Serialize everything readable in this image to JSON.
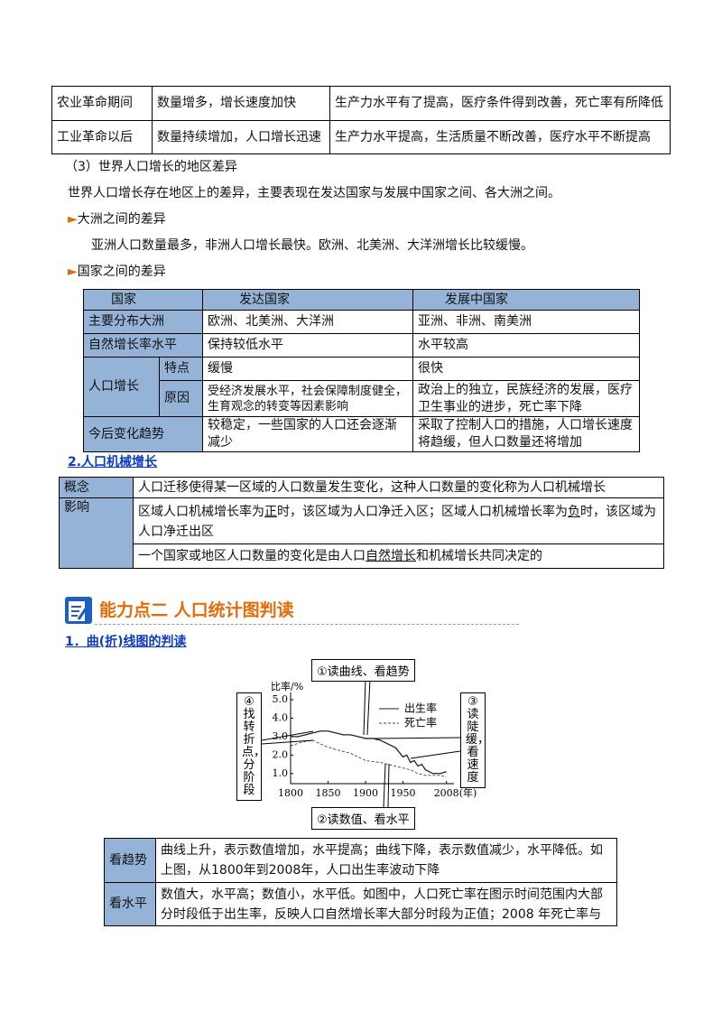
{
  "table1": {
    "rows": [
      [
        "农业革命期间",
        "数量增多，增长速度加快",
        "生产力水平有了提高，医疗条件得到改善，死亡率有所降低"
      ],
      [
        "工业革命以后",
        "数量持续增加，人口增长迅速",
        "生产力水平提高，生活质量不断改善，医疗水平不断提高"
      ]
    ]
  },
  "section3": {
    "heading": "（3）世界人口增长的地区差异",
    "intro": "世界人口增长存在地区上的差异，主要表现在发达国家与发展中国家之间、各大洲之间。",
    "sub1": {
      "title": "大洲之间的差异",
      "text": "亚洲人口数量最多，非洲人口增长最快。欧洲、北美洲、大洋洲增长比较缓慢。"
    },
    "sub2": {
      "title": "国家之间的差异"
    }
  },
  "table2": {
    "header": [
      "国家",
      "发达国家",
      "发展中国家"
    ],
    "rows": [
      [
        "主要分布大洲",
        "欧洲、北美洲、大洋洲",
        "亚洲、非洲、南美洲"
      ],
      [
        "自然增长率水平",
        "保持较低水平",
        "水平较高"
      ]
    ],
    "growth": {
      "label": "人口增长",
      "rows": [
        [
          "特点",
          "缓慢",
          "很快"
        ],
        [
          "原因",
          "受经济发展水平，社会保障制度健全，生育观念的转变等因素影响",
          "政治上的独立，民族经济的发展，医疗卫生事业的进步，死亡率下降"
        ]
      ]
    },
    "trend": [
      "今后变化趋势",
      "较稳定，一些国家的人口还会逐渐减少",
      "采取了控制人口的措施，人口增长速度将趋缓，但人口数量还将增加"
    ]
  },
  "table3": {
    "title": "2.人口机械增长",
    "concept": [
      "概念",
      "人口迁移使得某一区域的人口数量发生变化，这种人口数量的变化称为人口机械增长"
    ],
    "impact": {
      "label": "影响",
      "line1": [
        "区域人口机械增长率为",
        "正",
        "时，该区域为人口净迁入区；区域人口机械增长率为",
        "负",
        "时，该区域为人口净迁出区"
      ],
      "line2": [
        "一个国家或地区人口数量的变化是由人口",
        "自然增长",
        "和机械增长共同决定的"
      ]
    }
  },
  "section": {
    "title": "能力点二 人口统计图判读",
    "subtitle": "1．曲(折)线图的判读"
  },
  "chart_data": {
    "type": "line",
    "ylabel": "比率/%",
    "xlabel": "(年)",
    "xlim": [
      1800,
      2018
    ],
    "ylim": [
      0.5,
      5.0
    ],
    "xticks": [
      1800,
      1850,
      1900,
      1950,
      2008
    ],
    "yticks": [
      {
        "value": 1,
        "label": "1.0"
      },
      {
        "value": 2,
        "label": "2.0"
      },
      {
        "value": 3,
        "label": "3.0"
      },
      {
        "value": 4,
        "label": "4.0"
      },
      {
        "value": 5,
        "label": "5.0"
      }
    ],
    "series": [
      {
        "name": "出生率",
        "color": "#222222",
        "style": "solid",
        "x": [
          1800,
          1810,
          1820,
          1830,
          1840,
          1850,
          1860,
          1870,
          1880,
          1890,
          1900,
          1910,
          1920,
          1930,
          1940,
          1950,
          1955,
          1960,
          1965,
          1970,
          1975,
          1980,
          1990,
          2000,
          2008
        ],
        "values": [
          3.0,
          3.0,
          3.1,
          3.2,
          3.3,
          3.3,
          3.2,
          3.1,
          3.1,
          3.0,
          2.9,
          2.9,
          2.8,
          2.6,
          2.4,
          1.9,
          2.0,
          1.6,
          1.7,
          1.4,
          1.5,
          1.2,
          1.0,
          1.0,
          1.1
        ]
      },
      {
        "name": "死亡率",
        "color": "#444444",
        "style": "dashed",
        "x": [
          1800,
          1815,
          1830,
          1845,
          1860,
          1880,
          1900,
          1920,
          1940,
          1950,
          1960,
          1970,
          1980,
          1990,
          2000,
          2008
        ],
        "values": [
          2.5,
          2.7,
          2.8,
          2.5,
          2.3,
          2.1,
          1.7,
          1.6,
          1.4,
          1.3,
          1.2,
          1.0,
          0.9,
          0.9,
          0.9,
          0.8
        ]
      }
    ],
    "annotations": [
      "①读曲线、看趋势",
      "②读数值、看水平",
      "③读陡缓，看速度",
      "④找转折点，分阶段"
    ]
  },
  "table4": {
    "rows": [
      [
        "看趋势",
        "曲线上升，表示数值增加，水平提高；曲线下降，表示数值减少，水平降低。如上图，从1800年到2008年，人口出生率波动下降"
      ],
      [
        "看水平",
        "数值大，水平高；数值小，水平低。如图中，人口死亡率在图示时间范围内大部分时段低于出生率，反映人口自然增长率大部分时段为正值；2008 年死亡率与"
      ]
    ]
  }
}
